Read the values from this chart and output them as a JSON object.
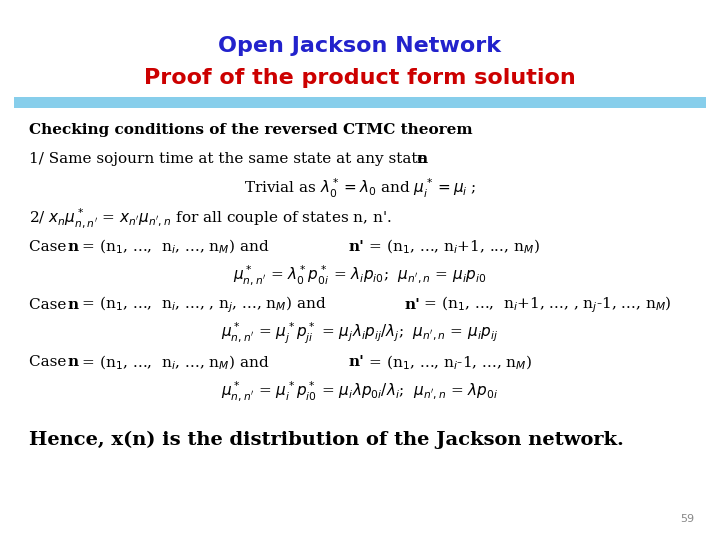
{
  "title_line1": "Open Jackson Network",
  "title_line2": "Proof of the product form solution",
  "title_line1_color": "#2222CC",
  "title_line2_color": "#CC0000",
  "background_color": "#FFFFFF",
  "separator_color": "#87CEEB",
  "body_color": "#000000",
  "page_number": "59",
  "title_fs": 16,
  "body_fs": 11,
  "hence_fs": 14
}
